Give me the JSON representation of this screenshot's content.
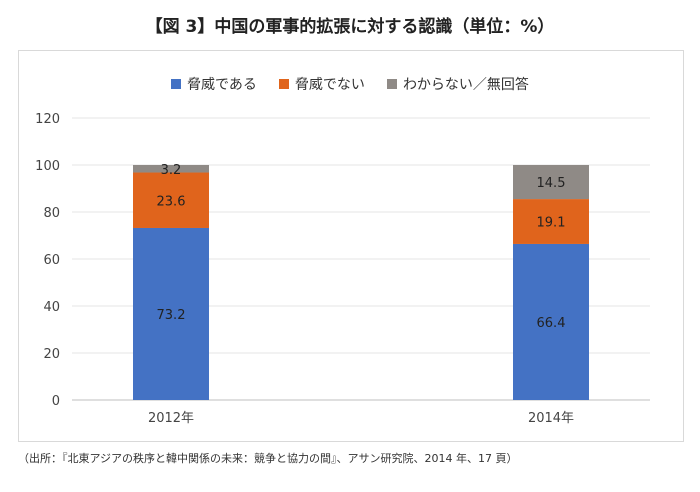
{
  "title": "【図 3】中国の軍事的拡張に対する認識（単位：%）",
  "source": "（出所：『北東アジアの秩序と韓中関係の未来：競争と協力の間』、アサン研究院、2014 年、17 頁）",
  "chart_data": {
    "type": "bar",
    "stacked": true,
    "categories": [
      "2012年",
      "2014年"
    ],
    "series": [
      {
        "name": "脅威である",
        "values": [
          73.2,
          66.4
        ],
        "color": "#4472c4"
      },
      {
        "name": "脅威でない",
        "values": [
          23.6,
          19.1
        ],
        "color": "#e0641c"
      },
      {
        "name": "わからない／無回答",
        "values": [
          3.2,
          14.5
        ],
        "color": "#8f8a86"
      }
    ],
    "data_labels": [
      [
        "73.2",
        "66.4"
      ],
      [
        "23.6",
        "19.1"
      ],
      [
        "3.2",
        "14.5"
      ]
    ],
    "ylim": [
      0,
      120
    ],
    "yticks": [
      0,
      20,
      40,
      60,
      80,
      100,
      120
    ],
    "grid": true,
    "legend_position": "top"
  }
}
